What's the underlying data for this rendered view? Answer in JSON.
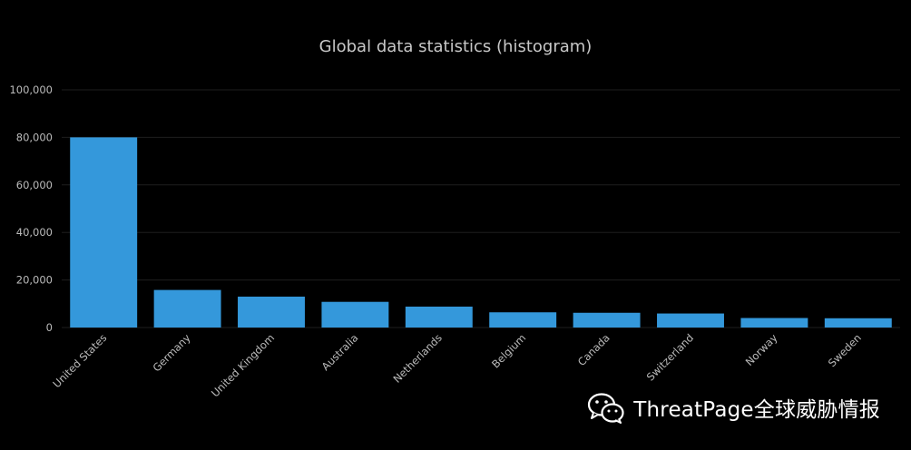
{
  "chart_data": {
    "type": "bar",
    "title": "Global data statistics (histogram)",
    "xlabel": "",
    "ylabel": "",
    "categories": [
      "United States",
      "Germany",
      "United Kingdom",
      "Australia",
      "Netherlands",
      "Belgium",
      "Canada",
      "Switzerland",
      "Norway",
      "Sweden"
    ],
    "values": [
      80000,
      15800,
      13000,
      10800,
      8800,
      6400,
      6200,
      5900,
      4000,
      3900
    ],
    "ylim": [
      0,
      100000
    ],
    "yticks": [
      "0",
      "20,000",
      "40,000",
      "60,000",
      "80,000",
      "100,000"
    ],
    "grid": true,
    "legend": "none",
    "colors": {
      "bar": "#3498db",
      "background": "#000000",
      "grid": "#1e1e1e",
      "text": "#bbbbbb",
      "title": "#c8c8c8"
    }
  },
  "watermark": {
    "text": "ThreatPage全球威胁情报",
    "icon": "wechat-icon"
  }
}
